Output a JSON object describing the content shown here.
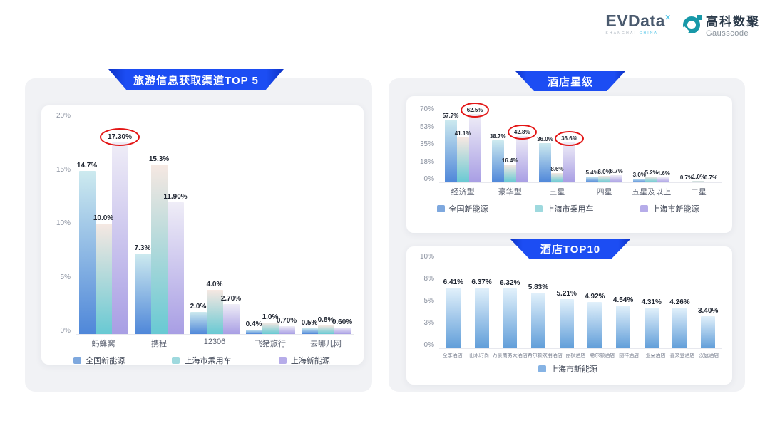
{
  "logo": {
    "brand": "EVData",
    "brand_sup": "×",
    "brand_sub_left": "SHANGHAI",
    "brand_sub_right": "CHINA",
    "partner_cn": "高科数聚",
    "partner_en": "Gausscode"
  },
  "colors": {
    "banner_blue": "#1c4df3",
    "circle_red": "#e31616",
    "panel_gray": "#f1f2f5",
    "series_gradients": [
      [
        "#cdeaef",
        "#4f87d9"
      ],
      [
        "#f6e8e2",
        "#68c9d3"
      ],
      [
        "#efedf7",
        "#a89ee4"
      ]
    ],
    "series_swatches": [
      "#7ea8de",
      "#9ed9de",
      "#b6ace9"
    ],
    "hotel_gradient": [
      "#e2f1fb",
      "#619ed9"
    ],
    "hotel_swatch": "#86b3e4"
  },
  "chart_data": [
    {
      "id": "channels",
      "type": "bar",
      "title": "旅游信息获取渠道TOP 5",
      "categories": [
        "蚂蜂窝",
        "携程",
        "12306",
        "飞猪旅行",
        "去哪儿网"
      ],
      "series": [
        {
          "name": "全国新能源",
          "values": [
            14.7,
            7.3,
            2.0,
            0.4,
            0.5
          ],
          "labels": [
            "14.7%",
            "7.3%",
            "2.0%",
            "0.4%",
            "0.5%"
          ]
        },
        {
          "name": "上海市乘用车",
          "values": [
            10.0,
            15.3,
            4.0,
            1.0,
            0.8
          ],
          "labels": [
            "10.0%",
            "15.3%",
            "4.0%",
            "1.0%",
            "0.8%"
          ]
        },
        {
          "name": "上海新能源",
          "values": [
            17.3,
            11.9,
            2.7,
            0.7,
            0.6
          ],
          "labels": [
            "17.30%",
            "11.90%",
            "2.70%",
            "0.70%",
            "0.60%"
          ]
        }
      ],
      "circled": [
        [
          0,
          2
        ]
      ],
      "yticks": [
        "20%",
        "15%",
        "10%",
        "5%",
        "0%"
      ],
      "ymax": 20,
      "ylim": [
        0,
        20
      ],
      "grid": false,
      "legend_position": "bottom",
      "bar_colors": [
        [
          "#cdeaef",
          "#4f87d9"
        ],
        [
          "#f6e8e2",
          "#68c9d3"
        ],
        [
          "#efedf7",
          "#a89ee4"
        ]
      ],
      "legend_colors": [
        "#7ea8de",
        "#9ed9de",
        "#b6ace9"
      ]
    },
    {
      "id": "hotel-star",
      "type": "bar",
      "title": "酒店星级",
      "categories": [
        "经济型",
        "豪华型",
        "三星",
        "四星",
        "五星及以上",
        "二星"
      ],
      "series": [
        {
          "name": "全国新能源",
          "values": [
            57.7,
            38.7,
            36.0,
            5.4,
            3.0,
            0.7
          ],
          "labels": [
            "57.7%",
            "38.7%",
            "36.0%",
            "5.4%",
            "3.0%",
            "0.7%"
          ]
        },
        {
          "name": "上海市乘用车",
          "values": [
            41.1,
            16.4,
            8.6,
            6.0,
            5.2,
            1.0
          ],
          "labels": [
            "41.1%",
            "16.4%",
            "8.6%",
            "6.0%",
            "5.2%",
            "1.0%"
          ]
        },
        {
          "name": "上海市新能源",
          "values": [
            62.5,
            42.8,
            36.6,
            6.7,
            4.6,
            0.7
          ],
          "labels": [
            "62.5%",
            "42.8%",
            "36.6%",
            "6.7%",
            "4.6%",
            "0.7%"
          ]
        }
      ],
      "circled": [
        [
          0,
          2
        ],
        [
          1,
          2
        ],
        [
          2,
          2
        ]
      ],
      "yticks": [
        "70%",
        "53%",
        "35%",
        "18%",
        "0%"
      ],
      "ymax": 70,
      "ylim": [
        0,
        70
      ],
      "grid": false,
      "legend_position": "bottom",
      "bar_colors": [
        [
          "#cdeaef",
          "#4f87d9"
        ],
        [
          "#f6e8e2",
          "#68c9d3"
        ],
        [
          "#efedf7",
          "#a89ee4"
        ]
      ],
      "legend_colors": [
        "#7ea8de",
        "#9ed9de",
        "#b6ace9"
      ]
    },
    {
      "id": "hotel-top10",
      "type": "bar",
      "title": "酒店TOP10",
      "categories": [
        "全季酒店",
        "山水时尚",
        "万豪商务大酒店",
        "希尔顿欢朋酒店",
        "丽枫酒店",
        "希尔顿酒店",
        "随祥酒店",
        "亚朵酒店",
        "喜来登酒店",
        "汉庭酒店"
      ],
      "series": [
        {
          "name": "上海市新能源",
          "values": [
            6.41,
            6.37,
            6.32,
            5.83,
            5.21,
            4.92,
            4.54,
            4.31,
            4.26,
            3.4
          ],
          "labels": [
            "6.41%",
            "6.37%",
            "6.32%",
            "5.83%",
            "5.21%",
            "4.92%",
            "4.54%",
            "4.31%",
            "4.26%",
            "3.40%"
          ]
        }
      ],
      "circled": [],
      "yticks": [
        "10%",
        "8%",
        "5%",
        "3%",
        "0%"
      ],
      "ymax": 10,
      "ylim": [
        0,
        10
      ],
      "grid": false,
      "legend_position": "bottom",
      "bar_colors": [
        [
          "#e2f1fb",
          "#619ed9"
        ]
      ],
      "legend_colors": [
        "#86b3e4"
      ]
    }
  ]
}
